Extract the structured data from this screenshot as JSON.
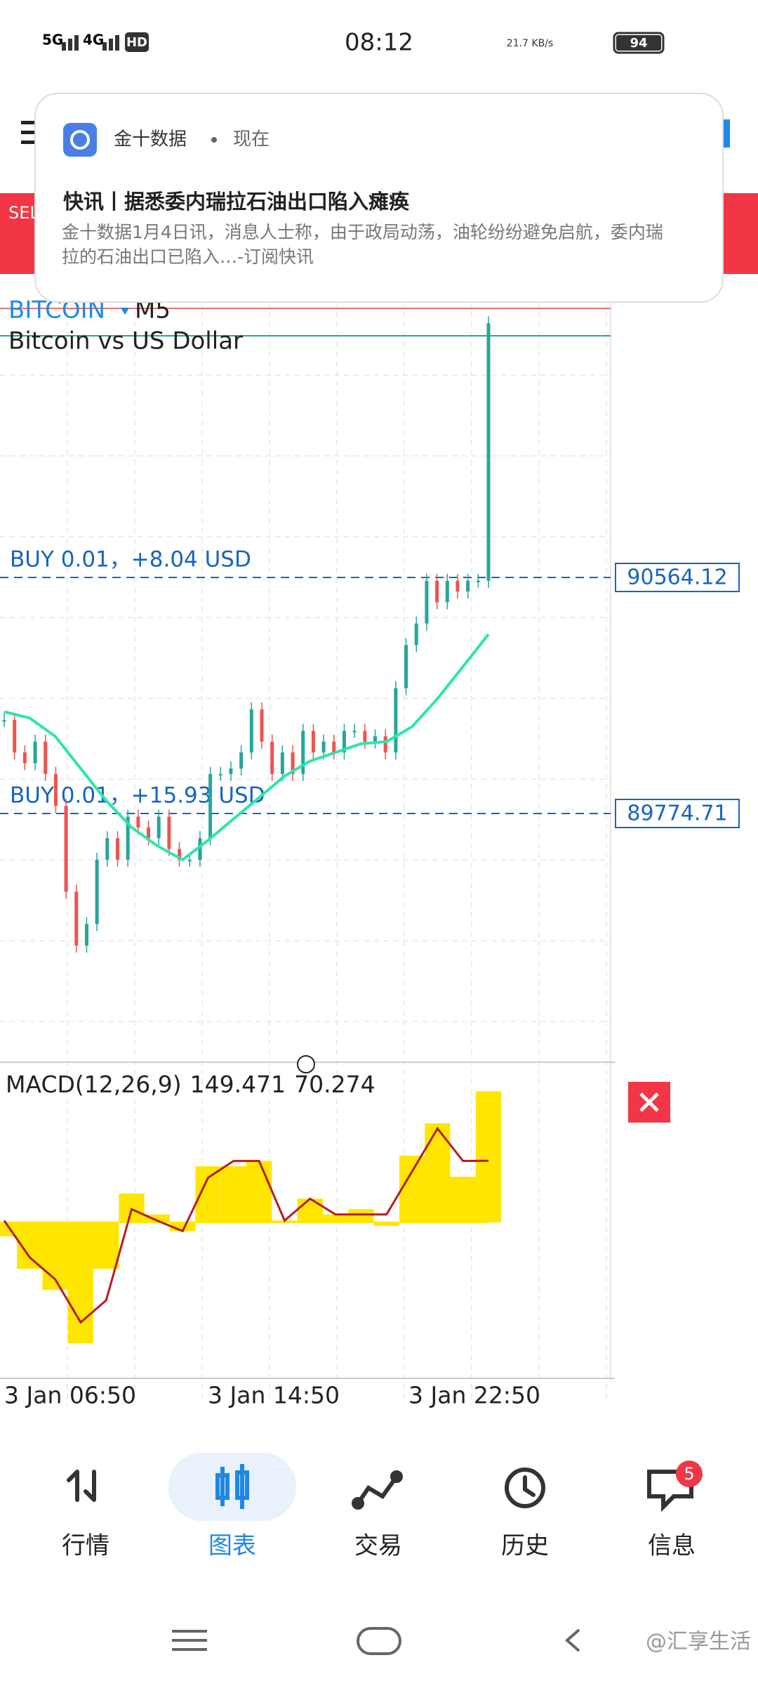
{
  "status_bar": {
    "network1": "5G",
    "network2": "4G",
    "hd": "HD",
    "time": "08:12",
    "speed": "21.7 KB/s",
    "battery": "94"
  },
  "notification": {
    "app": "金十数据",
    "when": "现在",
    "title": "快讯丨据悉委内瑞拉石油出口陷入瘫痪",
    "body": "金十数据1月4日讯，消息人士称，由于政局动荡，油轮纷纷避免启航，委内瑞拉的石油出口已陷入…-订阅快讯"
  },
  "sell_button": "SEL",
  "chart": {
    "symbol": "BITCOIN",
    "timeframe": "M5",
    "description": "Bitcoin vs US Dollar",
    "orders": [
      {
        "label": "BUY 0.01，+8.04 USD",
        "price": 90564.12
      },
      {
        "label": "BUY 0.01，+15.93 USD",
        "price": 89774.71
      }
    ],
    "closes": [
      90087,
      89979,
      89943,
      90015,
      89907,
      89800,
      89513,
      89333,
      89405,
      89620,
      89692,
      89620,
      89764,
      89728,
      89692,
      89764,
      89656,
      89620,
      89620,
      89692,
      89907,
      89907,
      89925,
      89979,
      90123,
      90015,
      89907,
      89979,
      89907,
      90051,
      89979,
      90015,
      89979,
      90051,
      90051,
      90015,
      90033,
      89979,
      90194,
      90338,
      90410,
      90553,
      90481,
      90553,
      90517,
      90553,
      90553,
      91414
    ],
    "ma": [
      90115,
      90094,
      90033,
      89925,
      89818,
      89728,
      89667,
      89620,
      89685,
      89757,
      89828,
      89900,
      89950,
      89979,
      90008,
      90015,
      90065,
      90159,
      90266,
      90374
    ],
    "macd": {
      "label": "MACD(12,26,9)",
      "main": 149.471,
      "signal": 70.274,
      "histogram": [
        -16,
        -53,
        -77,
        -138,
        -53,
        33,
        9,
        -10,
        64,
        64,
        70,
        2,
        27,
        9,
        15,
        -4,
        76,
        113,
        52
      ],
      "signal_line": [
        2,
        -40,
        -65,
        -114,
        -89,
        15,
        2,
        -10,
        51,
        70,
        70,
        2,
        27,
        9,
        9,
        9,
        58,
        107,
        70
      ]
    },
    "time_labels": [
      "3 Jan 06:50",
      "3 Jan 14:50",
      "3 Jan 22:50"
    ]
  },
  "nav": {
    "items": [
      "行情",
      "图表",
      "交易",
      "历史",
      "信息"
    ],
    "badge": 5
  },
  "watermark": "@汇享生活"
}
